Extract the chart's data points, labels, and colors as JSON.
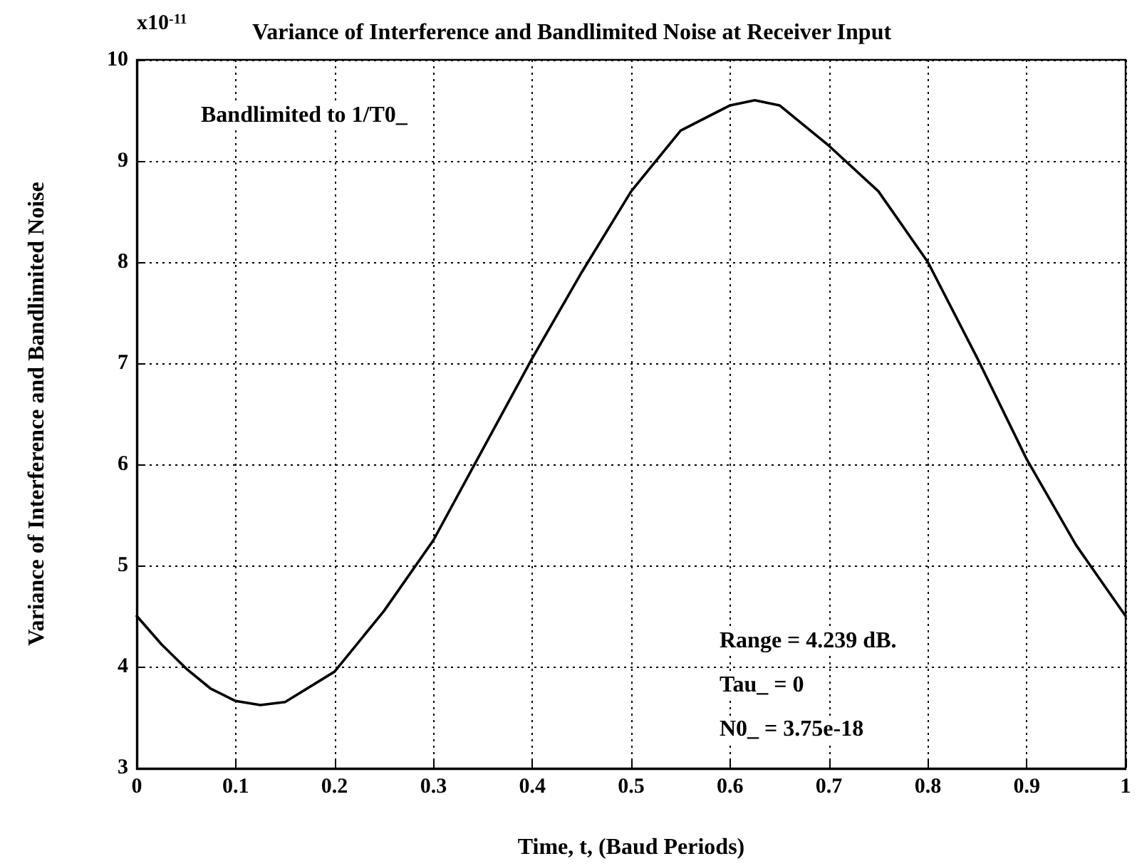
{
  "chart_data": {
    "type": "line",
    "title": "Variance of Interference and Bandlimited Noise at Receiver Input",
    "xlabel": "Time, t, (Baud Periods)",
    "ylabel": "Variance of Interference and Bandlimited Noise",
    "annotations": [
      "x10$^{-11}$",
      "Bandlimited to 1/T0_",
      "Range = 4.239 dB.",
      "Tau_ = 0",
      "N0_ = 3.75e-18"
    ],
    "x": [
      0,
      0.025,
      0.05,
      0.075,
      0.1,
      0.125,
      0.15,
      0.2,
      0.25,
      0.3,
      0.35,
      0.4,
      0.45,
      0.5,
      0.55,
      0.6,
      0.625,
      0.65,
      0.7,
      0.75,
      0.8,
      0.85,
      0.9,
      0.95,
      1
    ],
    "series": [
      {
        "color": "#000000",
        "values": [
          4.5,
          4.22,
          3.98,
          3.78,
          3.66,
          3.62,
          3.65,
          3.95,
          4.55,
          5.25,
          6.15,
          7.05,
          7.9,
          8.7,
          9.3,
          9.55,
          9.6,
          9.55,
          9.15,
          8.7,
          8.0,
          7.05,
          6.05,
          5.2,
          4.5
        ]
      }
    ],
    "xlim": [
      0,
      1
    ],
    "xticks": [
      0,
      0.1,
      0.2,
      0.3,
      0.4,
      0.5,
      0.6,
      0.7,
      0.8,
      0.9,
      1
    ],
    "ylim": [
      3,
      10
    ],
    "yticks": [
      3,
      4,
      5,
      6,
      7,
      8,
      9,
      10
    ],
    "grid": true,
    "marker": "none",
    "line_style": "solid"
  }
}
